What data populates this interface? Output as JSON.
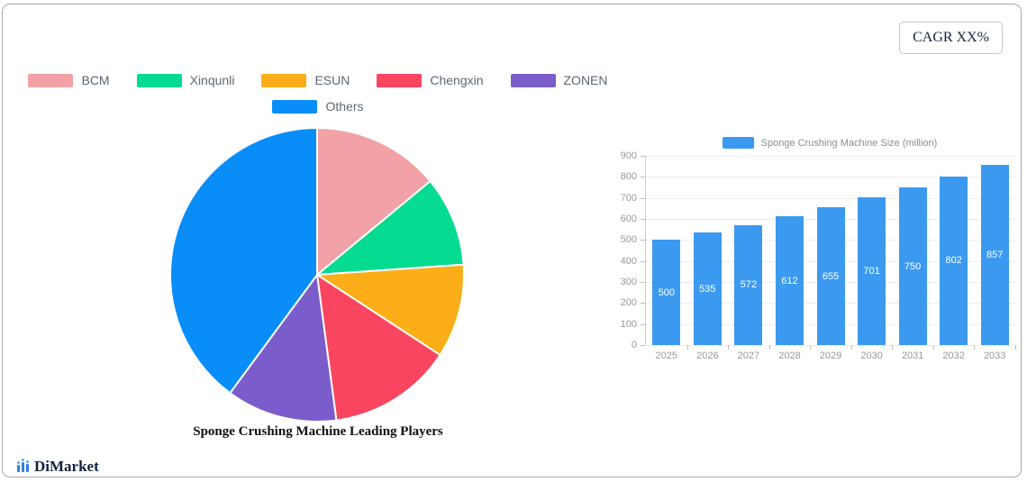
{
  "badge": {
    "cagr_label": "CAGR XX%"
  },
  "logo": {
    "text": "DiMarket",
    "icon": "bar-chart-logo-icon"
  },
  "colors": {
    "bar_blue": "#3b9af0",
    "card_border": "#a9a9a9",
    "axis_text": "#999999",
    "grid_line": "#ededed",
    "legend_text": "#5c6670"
  },
  "chart_data": [
    {
      "type": "pie",
      "title": "Sponge Crushing Machine Leading Players",
      "labels": [
        "BCM",
        "Xinqunli",
        "ESUN",
        "Chengxin",
        "ZONEN",
        "Others"
      ],
      "values": [
        14,
        9.9,
        10.3,
        13.7,
        12.2,
        39.9
      ],
      "colors": [
        "#f2a2a6",
        "#06db92",
        "#fbae17",
        "#f9455f",
        "#7a5dcb",
        "#088df9"
      ],
      "unit": "percent",
      "start_angle_deg": 0,
      "direction": "clockwise",
      "legend_position": "top",
      "legend_rows": [
        [
          0,
          1,
          2,
          3,
          4
        ],
        [
          5
        ]
      ]
    },
    {
      "type": "bar",
      "legend": "Sponge Crushing Machine Size (million)",
      "categories": [
        "2025",
        "2026",
        "2027",
        "2028",
        "2029",
        "2030",
        "2031",
        "2032",
        "2033"
      ],
      "values": [
        500,
        535,
        572,
        612,
        655,
        701,
        750,
        802,
        857
      ],
      "ylim": [
        0,
        900
      ],
      "ytick_step": 100,
      "bar_color": "#3b9af0",
      "grid": true,
      "value_labels": "white, centered inside bars",
      "legend_position": "top"
    }
  ]
}
